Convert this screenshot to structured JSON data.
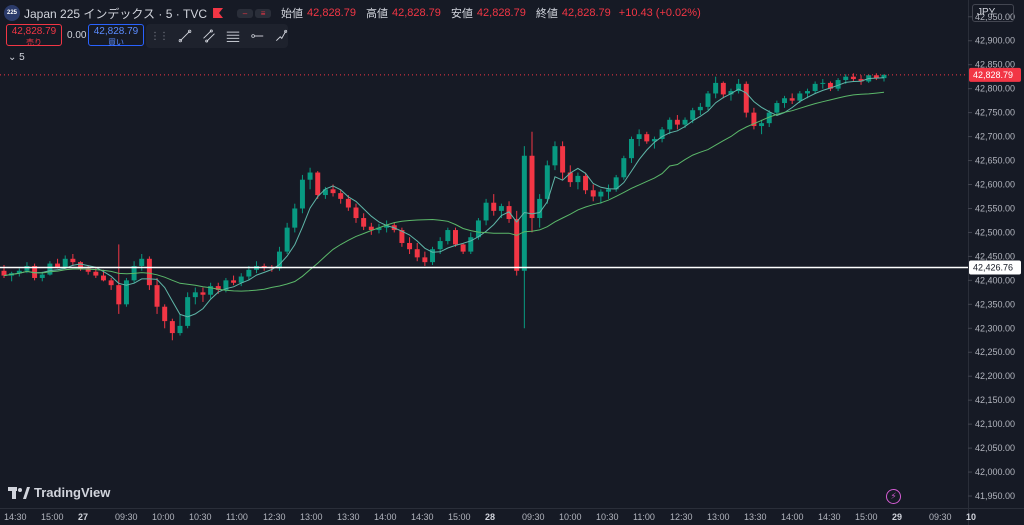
{
  "header": {
    "symbol_badge": "225",
    "title": "Japan 225 インデックス · 5 · TVC",
    "open_label": "始値",
    "open": "42,828.79",
    "high_label": "高値",
    "high": "42,828.79",
    "low_label": "安値",
    "low": "42,828.79",
    "close_label": "終値",
    "close": "42,828.79",
    "change": "+10.43 (+0.02%)"
  },
  "trade": {
    "sell_price": "42,828.79",
    "sell_label": "売り",
    "spread": "0.00",
    "buy_price": "42,828.79",
    "buy_label": "買い"
  },
  "indicator": {
    "label": "5"
  },
  "currency": "JPY",
  "branding": {
    "name": "TradingView"
  },
  "colors": {
    "up": "#089981",
    "down": "#f23645",
    "ma_fast": "#5fb6a8",
    "ma_slow": "#5bb86a",
    "background": "#161a25"
  },
  "icons": [
    "chevron-down-icon",
    "trend-line-icon",
    "parallel-channel-icon",
    "fib-retracement-icon",
    "horizontal-ray-icon",
    "path-icon",
    "lightning-icon"
  ],
  "chart_data": {
    "type": "candlestick",
    "symbol": "Japan 225",
    "interval": "5",
    "ylim": [
      41925,
      42985
    ],
    "y_ticks": [
      "42,950.00",
      "42,900.00",
      "42,850.00",
      "42,800.00",
      "42,750.00",
      "42,700.00",
      "42,650.00",
      "42,600.00",
      "42,550.00",
      "42,500.00",
      "42,450.00",
      "42,400.00",
      "42,350.00",
      "42,300.00",
      "42,250.00",
      "42,200.00",
      "42,150.00",
      "42,100.00",
      "42,050.00",
      "42,000.00",
      "41,950.00"
    ],
    "x_ticks": [
      "14:30",
      "15:00",
      "27",
      "09:30",
      "10:00",
      "10:30",
      "11:00",
      "12:30",
      "13:00",
      "13:30",
      "14:00",
      "14:30",
      "15:00",
      "28",
      "09:30",
      "10:00",
      "10:30",
      "11:00",
      "12:30",
      "13:00",
      "13:30",
      "14:00",
      "14:30",
      "15:00",
      "29",
      "09:30",
      "10"
    ],
    "last_price": {
      "value": 42828.79,
      "label": "42,828.79"
    },
    "horizontal_line": {
      "value": 42426.76,
      "label": "42,426.76"
    },
    "candles": [
      [
        42420,
        42432,
        42405,
        42410
      ],
      [
        42410,
        42418,
        42398,
        42415
      ],
      [
        42415,
        42425,
        42408,
        42420
      ],
      [
        42420,
        42438,
        42415,
        42430
      ],
      [
        42430,
        42435,
        42400,
        42405
      ],
      [
        42405,
        42418,
        42398,
        42412
      ],
      [
        42412,
        42440,
        42410,
        42435
      ],
      [
        42435,
        42445,
        42425,
        42428
      ],
      [
        42428,
        42452,
        42425,
        42445
      ],
      [
        42445,
        42455,
        42430,
        42438
      ],
      [
        42438,
        42440,
        42420,
        42425
      ],
      [
        42425,
        42430,
        42412,
        42418
      ],
      [
        42418,
        42425,
        42405,
        42410
      ],
      [
        42410,
        42422,
        42398,
        42400
      ],
      [
        42400,
        42405,
        42380,
        42390
      ],
      [
        42390,
        42475,
        42330,
        42350
      ],
      [
        42350,
        42405,
        42345,
        42400
      ],
      [
        42400,
        42440,
        42395,
        42430
      ],
      [
        42430,
        42455,
        42420,
        42445
      ],
      [
        42445,
        42450,
        42380,
        42390
      ],
      [
        42390,
        42405,
        42330,
        42345
      ],
      [
        42345,
        42350,
        42300,
        42315
      ],
      [
        42315,
        42320,
        42275,
        42290
      ],
      [
        42290,
        42330,
        42285,
        42305
      ],
      [
        42305,
        42375,
        42300,
        42365
      ],
      [
        42365,
        42385,
        42350,
        42375
      ],
      [
        42375,
        42385,
        42355,
        42370
      ],
      [
        42370,
        42395,
        42362,
        42388
      ],
      [
        42388,
        42395,
        42372,
        42380
      ],
      [
        42380,
        42405,
        42375,
        42400
      ],
      [
        42400,
        42410,
        42390,
        42395
      ],
      [
        42395,
        42415,
        42388,
        42408
      ],
      [
        42408,
        42430,
        42400,
        42422
      ],
      [
        42422,
        42440,
        42415,
        42430
      ],
      [
        42430,
        42435,
        42420,
        42428
      ],
      [
        42428,
        42432,
        42418,
        42425
      ],
      [
        42425,
        42470,
        42420,
        42460
      ],
      [
        42460,
        42520,
        42455,
        42510
      ],
      [
        42510,
        42560,
        42500,
        42550
      ],
      [
        42550,
        42620,
        42540,
        42610
      ],
      [
        42610,
        42635,
        42590,
        42625
      ],
      [
        42625,
        42628,
        42570,
        42578
      ],
      [
        42578,
        42595,
        42570,
        42590
      ],
      [
        42590,
        42600,
        42575,
        42582
      ],
      [
        42582,
        42590,
        42560,
        42570
      ],
      [
        42570,
        42578,
        42545,
        42552
      ],
      [
        42552,
        42560,
        42520,
        42530
      ],
      [
        42530,
        42540,
        42505,
        42512
      ],
      [
        42512,
        42520,
        42495,
        42505
      ],
      [
        42505,
        42518,
        42498,
        42510
      ],
      [
        42510,
        42525,
        42500,
        42515
      ],
      [
        42515,
        42520,
        42500,
        42505
      ],
      [
        42505,
        42510,
        42470,
        42478
      ],
      [
        42478,
        42490,
        42455,
        42465
      ],
      [
        42465,
        42478,
        42440,
        42448
      ],
      [
        42448,
        42460,
        42430,
        42438
      ],
      [
        42438,
        42470,
        42432,
        42465
      ],
      [
        42465,
        42490,
        42455,
        42482
      ],
      [
        42482,
        42510,
        42475,
        42505
      ],
      [
        42505,
        42510,
        42470,
        42475
      ],
      [
        42475,
        42478,
        42455,
        42460
      ],
      [
        42460,
        42500,
        42455,
        42490
      ],
      [
        42490,
        42530,
        42485,
        42525
      ],
      [
        42525,
        42570,
        42515,
        42562
      ],
      [
        42562,
        42580,
        42535,
        42545
      ],
      [
        42545,
        42560,
        42530,
        42555
      ],
      [
        42555,
        42565,
        42520,
        42528
      ],
      [
        42528,
        42545,
        42410,
        42420
      ],
      [
        42420,
        42680,
        42300,
        42660
      ],
      [
        42660,
        42710,
        42500,
        42530
      ],
      [
        42530,
        42580,
        42510,
        42570
      ],
      [
        42570,
        42650,
        42560,
        42640
      ],
      [
        42640,
        42690,
        42630,
        42680
      ],
      [
        42680,
        42690,
        42610,
        42625
      ],
      [
        42625,
        42640,
        42595,
        42605
      ],
      [
        42605,
        42625,
        42590,
        42618
      ],
      [
        42618,
        42625,
        42580,
        42588
      ],
      [
        42588,
        42600,
        42565,
        42575
      ],
      [
        42575,
        42590,
        42560,
        42585
      ],
      [
        42585,
        42600,
        42570,
        42590
      ],
      [
        42590,
        42620,
        42585,
        42615
      ],
      [
        42615,
        42660,
        42610,
        42655
      ],
      [
        42655,
        42700,
        42645,
        42695
      ],
      [
        42695,
        42715,
        42680,
        42705
      ],
      [
        42705,
        42710,
        42685,
        42690
      ],
      [
        42690,
        42700,
        42675,
        42695
      ],
      [
        42695,
        42720,
        42688,
        42715
      ],
      [
        42715,
        42740,
        42705,
        42735
      ],
      [
        42735,
        42745,
        42715,
        42725
      ],
      [
        42725,
        42740,
        42718,
        42735
      ],
      [
        42735,
        42760,
        42728,
        42755
      ],
      [
        42755,
        42770,
        42745,
        42762
      ],
      [
        42762,
        42795,
        42755,
        42790
      ],
      [
        42790,
        42825,
        42780,
        42812
      ],
      [
        42812,
        42815,
        42780,
        42788
      ],
      [
        42788,
        42800,
        42775,
        42795
      ],
      [
        42795,
        42820,
        42790,
        42810
      ],
      [
        42810,
        42815,
        42740,
        42750
      ],
      [
        42750,
        42760,
        42715,
        42722
      ],
      [
        42722,
        42735,
        42705,
        42728
      ],
      [
        42728,
        42755,
        42720,
        42750
      ],
      [
        42750,
        42775,
        42745,
        42770
      ],
      [
        42770,
        42785,
        42760,
        42780
      ],
      [
        42780,
        42790,
        42768,
        42775
      ],
      [
        42775,
        42795,
        42770,
        42790
      ],
      [
        42790,
        42800,
        42780,
        42795
      ],
      [
        42795,
        42815,
        42790,
        42810
      ],
      [
        42810,
        42820,
        42800,
        42812
      ],
      [
        42812,
        42815,
        42795,
        42800
      ],
      [
        42800,
        42822,
        42795,
        42818
      ],
      [
        42818,
        42830,
        42810,
        42825
      ],
      [
        42825,
        42832,
        42815,
        42820
      ],
      [
        42820,
        42828,
        42808,
        42815
      ],
      [
        42815,
        42830,
        42812,
        42828
      ],
      [
        42828,
        42832,
        42818,
        42822
      ],
      [
        42822,
        42830,
        42815,
        42829
      ]
    ]
  }
}
